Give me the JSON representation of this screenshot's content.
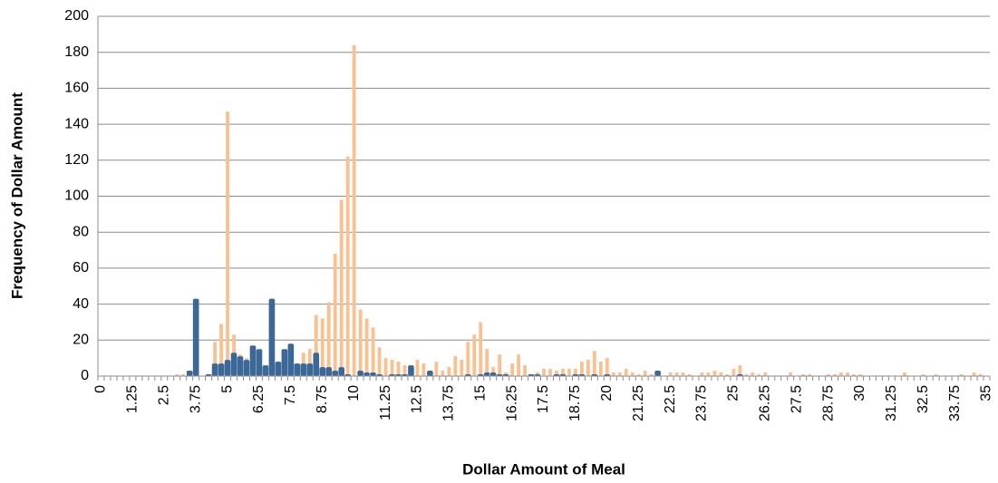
{
  "chart_data": {
    "type": "bar",
    "x_label": "Dollar Amount of Meal",
    "y_label": "Frequency of Dollar Amount",
    "categories": [
      "0",
      null,
      null,
      null,
      null,
      "1.25",
      null,
      null,
      null,
      null,
      "2.5",
      null,
      null,
      null,
      null,
      "3.75",
      null,
      null,
      null,
      null,
      "5",
      null,
      null,
      null,
      null,
      "6.25",
      null,
      null,
      null,
      null,
      "7.5",
      null,
      null,
      null,
      null,
      "8.75",
      null,
      null,
      null,
      null,
      "10",
      null,
      null,
      null,
      null,
      "11.25",
      null,
      null,
      null,
      null,
      "12.5",
      null,
      null,
      null,
      null,
      "13.75",
      null,
      null,
      null,
      null,
      "15",
      null,
      null,
      null,
      null,
      "16.25",
      null,
      null,
      null,
      null,
      "17.5",
      null,
      null,
      null,
      null,
      "18.75",
      null,
      null,
      null,
      null,
      "20",
      null,
      null,
      null,
      null,
      "21.25",
      null,
      null,
      null,
      null,
      "22.5",
      null,
      null,
      null,
      null,
      "23.75",
      null,
      null,
      null,
      null,
      "25",
      null,
      null,
      null,
      null,
      "26.25",
      null,
      null,
      null,
      null,
      "27.5",
      null,
      null,
      null,
      null,
      "28.75",
      null,
      null,
      null,
      null,
      "30",
      null,
      null,
      null,
      null,
      "31.25",
      null,
      null,
      null,
      null,
      "32.5",
      null,
      null,
      null,
      null,
      "33.75",
      null,
      null,
      null,
      null,
      "35"
    ],
    "series": [
      {
        "color": "#fac090",
        "values": [
          0,
          0,
          0,
          0,
          0,
          0,
          0,
          0,
          0,
          0,
          0,
          0,
          1,
          1,
          2,
          0,
          0,
          1,
          19,
          29,
          147,
          23,
          12,
          10,
          12,
          10,
          5,
          0,
          8,
          12,
          10,
          7,
          13,
          15,
          34,
          32,
          41,
          68,
          98,
          122,
          184,
          37,
          32,
          27,
          16,
          10,
          9,
          8,
          6,
          5,
          9,
          7,
          3,
          8,
          3,
          5,
          11,
          9,
          19,
          23,
          30,
          15,
          5,
          12,
          2,
          7,
          12,
          6,
          1,
          2,
          4,
          4,
          3,
          4,
          4,
          4,
          8,
          9,
          14,
          8,
          10,
          2,
          2,
          4,
          2,
          1,
          3,
          1,
          1,
          0,
          2,
          2,
          2,
          1,
          0,
          2,
          2,
          3,
          2,
          1,
          4,
          6,
          1,
          2,
          1,
          2,
          0,
          0,
          0,
          2,
          0,
          1,
          1,
          0,
          0,
          1,
          1,
          2,
          2,
          1,
          1,
          0,
          0,
          0,
          0,
          0,
          0,
          2,
          0,
          0,
          1,
          0,
          1,
          0,
          0,
          0,
          1,
          0,
          2,
          1,
          0
        ]
      },
      {
        "color": "#3c6898",
        "values": [
          0,
          0,
          0,
          0,
          0,
          0,
          0,
          0,
          0,
          0,
          0,
          0,
          0,
          0,
          3,
          43,
          0,
          1,
          7,
          7,
          9,
          13,
          11,
          9,
          17,
          15,
          6,
          43,
          8,
          15,
          18,
          7,
          7,
          7,
          13,
          5,
          5,
          3,
          5,
          1,
          0,
          3,
          2,
          2,
          1,
          0,
          1,
          1,
          1,
          6,
          0,
          0,
          3,
          0,
          0,
          0,
          0,
          0,
          1,
          0,
          1,
          2,
          2,
          1,
          1,
          0,
          0,
          0,
          1,
          1,
          0,
          0,
          1,
          1,
          0,
          1,
          1,
          0,
          1,
          0,
          1,
          0,
          0,
          0,
          0,
          0,
          0,
          0,
          3,
          0,
          0,
          0,
          0,
          0,
          0,
          0,
          0,
          0,
          0,
          0,
          0,
          1,
          0,
          0,
          0,
          0,
          0,
          0,
          0,
          0,
          0,
          0,
          0,
          0,
          0,
          0,
          0,
          0,
          0,
          0,
          0,
          0,
          0,
          0,
          0,
          0,
          0,
          0,
          0,
          0,
          0,
          0,
          0,
          0,
          0,
          0,
          0,
          0,
          0,
          0,
          0
        ]
      }
    ],
    "ylim": [
      0,
      200
    ],
    "yticks": [
      0,
      20,
      40,
      60,
      80,
      100,
      120,
      140,
      160,
      180,
      200
    ],
    "grid": true
  }
}
